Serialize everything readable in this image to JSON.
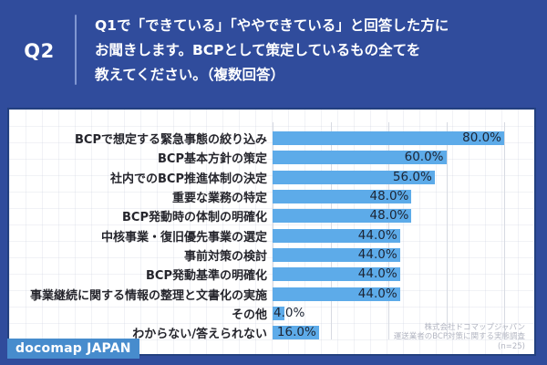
{
  "header": {
    "question_number": "Q2",
    "question_text_lines": [
      "Q1で「できている」「ややできている」と回答した方に",
      "お聞きします。BCPとして策定しているもの全てを",
      "教えてください。（複数回答）"
    ]
  },
  "chart_data": {
    "type": "bar",
    "orientation": "horizontal",
    "title": "",
    "categories": [
      "BCPで想定する緊急事態の絞り込み",
      "BCP基本方針の策定",
      "社内でのBCP推進体制の決定",
      "重要な業務の特定",
      "BCP発動時の体制の明確化",
      "中核事業・復旧優先事業の選定",
      "事前対策の検討",
      "BCP発動基準の明確化",
      "事業継続に関する情報の整理と文書化の実施",
      "その他",
      "わからない/答えられない"
    ],
    "values": [
      80.0,
      60.0,
      56.0,
      48.0,
      48.0,
      44.0,
      44.0,
      44.0,
      44.0,
      4.0,
      16.0
    ],
    "value_labels": [
      "80.0%",
      "60.0%",
      "56.0%",
      "48.0%",
      "48.0%",
      "44.0%",
      "44.0%",
      "44.0%",
      "44.0%",
      "4.0%",
      "16.0%"
    ],
    "xlabel": "",
    "ylabel": "",
    "xlim": [
      0,
      100
    ],
    "gridline_percents": [
      0,
      20,
      40,
      60,
      80
    ],
    "grid": true,
    "legend": false
  },
  "footer": {
    "logo_text": "docomap JAPAN",
    "source_lines": [
      "株式会社ドコマップジャパン",
      "運送業者のBCP対策に関する実態調査",
      "(n=25)"
    ]
  },
  "colors": {
    "background": "#304c9c",
    "panel_border": "#23407f",
    "bar": "#5dabe9",
    "gridline": "#d7dae2",
    "logo_bg": "#478ccd",
    "value_text": "#1c2433",
    "category_text": "#25252c",
    "source_text": "#b2b5c1",
    "header_text": "#ffffff"
  }
}
